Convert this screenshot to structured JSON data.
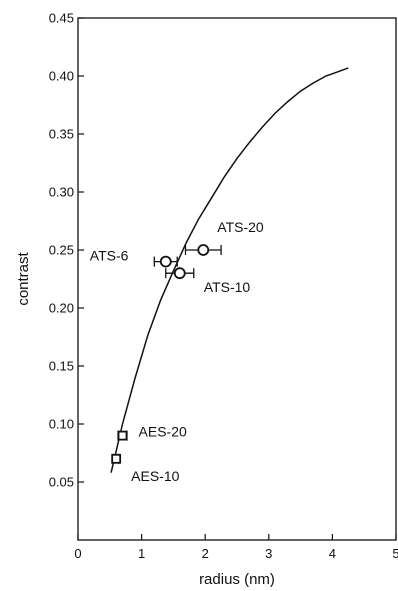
{
  "chart_data": {
    "type": "scatter",
    "xlabel": "radius (nm)",
    "ylabel": "contrast",
    "xlim": [
      0,
      5
    ],
    "ylim": [
      0.0,
      0.45
    ],
    "x_ticks": [
      0,
      1,
      2,
      3,
      4,
      5
    ],
    "x_tick_labels": [
      "0",
      "1",
      "2",
      "3",
      "4",
      "5"
    ],
    "y_ticks": [
      0.05,
      0.1,
      0.15,
      0.2,
      0.25,
      0.3,
      0.35,
      0.4,
      0.45
    ],
    "y_tick_labels": [
      "0.05",
      "0.10",
      "0.15",
      "0.20",
      "0.25",
      "0.30",
      "0.35",
      "0.40",
      "0.45"
    ],
    "grid": false,
    "points": [
      {
        "label": "ATS-6",
        "x": 1.38,
        "y": 0.24,
        "xerr": 0.18,
        "marker": "circle"
      },
      {
        "label": "ATS-20",
        "x": 1.97,
        "y": 0.25,
        "xerr": 0.28,
        "marker": "circle"
      },
      {
        "label": "ATS-10",
        "x": 1.6,
        "y": 0.23,
        "xerr": 0.22,
        "marker": "circle"
      },
      {
        "label": "AES-20",
        "x": 0.7,
        "y": 0.09,
        "xerr": 0.07,
        "marker": "square"
      },
      {
        "label": "AES-10",
        "x": 0.6,
        "y": 0.07,
        "xerr": 0.04,
        "marker": "square"
      }
    ],
    "curve": {
      "x": [
        0.52,
        0.7,
        0.9,
        1.1,
        1.3,
        1.5,
        1.7,
        1.9,
        2.1,
        2.3,
        2.5,
        2.7,
        2.9,
        3.1,
        3.3,
        3.5,
        3.7,
        3.9,
        4.1,
        4.25
      ],
      "y": [
        0.058,
        0.1,
        0.14,
        0.177,
        0.207,
        0.232,
        0.256,
        0.277,
        0.295,
        0.313,
        0.329,
        0.343,
        0.356,
        0.368,
        0.378,
        0.387,
        0.394,
        0.4,
        0.404,
        0.407
      ]
    }
  }
}
